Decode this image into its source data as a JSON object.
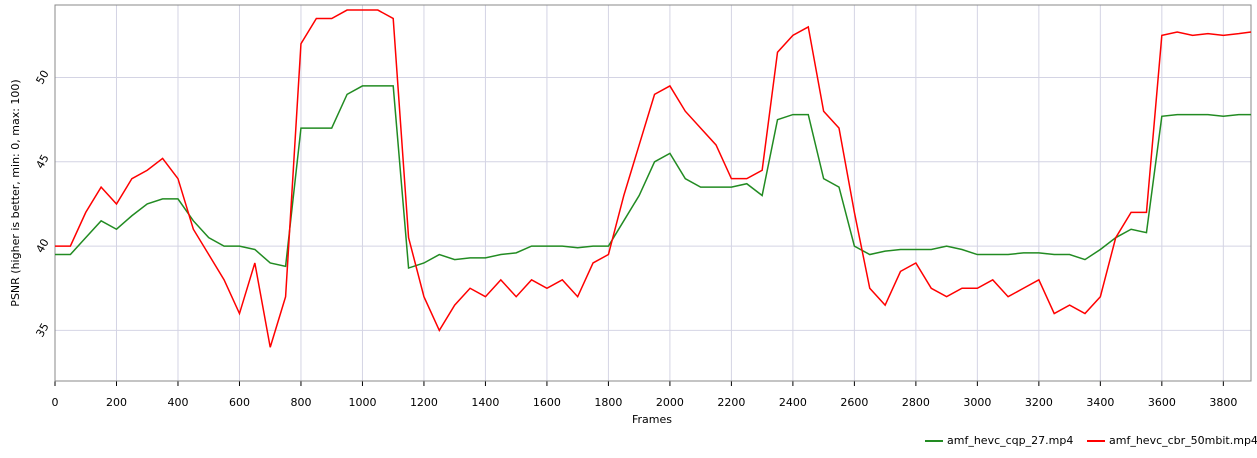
{
  "chart_data": {
    "type": "line",
    "x_label": "Frames",
    "y_label": "PSNR (higher is better, min: 0, max: 100)",
    "x": [
      0,
      50,
      100,
      150,
      200,
      250,
      300,
      350,
      400,
      450,
      500,
      550,
      600,
      650,
      700,
      750,
      800,
      850,
      900,
      950,
      1000,
      1050,
      1100,
      1150,
      1200,
      1250,
      1300,
      1350,
      1400,
      1450,
      1500,
      1550,
      1600,
      1650,
      1700,
      1750,
      1800,
      1850,
      1900,
      1950,
      2000,
      2050,
      2100,
      2150,
      2200,
      2250,
      2300,
      2350,
      2400,
      2450,
      2500,
      2550,
      2600,
      2650,
      2700,
      2750,
      2800,
      2850,
      2900,
      2950,
      3000,
      3050,
      3100,
      3150,
      3200,
      3250,
      3300,
      3350,
      3400,
      3450,
      3500,
      3550,
      3600,
      3650,
      3700,
      3750,
      3800,
      3850,
      3890
    ],
    "series": [
      {
        "name": "amf_hevc_cqp_27.mp4",
        "color": "#228b22",
        "values": [
          39.5,
          39.5,
          40.5,
          41.5,
          41,
          41.8,
          42.5,
          42.8,
          42.8,
          41.5,
          40.5,
          40,
          40,
          39.8,
          39,
          38.8,
          47,
          47,
          47,
          49,
          49.5,
          49.5,
          49.5,
          38.7,
          39,
          39.5,
          39.2,
          39.3,
          39.3,
          39.5,
          39.6,
          40,
          40,
          40,
          39.9,
          40,
          40,
          41.5,
          43,
          45,
          45.5,
          44,
          43.5,
          43.5,
          43.5,
          43.7,
          43,
          47.5,
          47.8,
          47.8,
          44,
          43.5,
          40,
          39.5,
          39.7,
          39.8,
          39.8,
          39.8,
          40,
          39.8,
          39.5,
          39.5,
          39.5,
          39.6,
          39.6,
          39.5,
          39.5,
          39.2,
          39.8,
          40.5,
          41,
          40.8,
          47.7,
          47.8,
          47.8,
          47.8,
          47.7,
          47.8,
          47.8
        ]
      },
      {
        "name": "amf_hevc_cbr_50mbit.mp4",
        "color": "#ff0000",
        "values": [
          40,
          40,
          42,
          43.5,
          42.5,
          44,
          44.5,
          45.2,
          44,
          41,
          39.5,
          38,
          36,
          39,
          34,
          37,
          52,
          53.5,
          53.5,
          54,
          54,
          54,
          53.5,
          40.5,
          37,
          35,
          36.5,
          37.5,
          37,
          38,
          37,
          38,
          37.5,
          38,
          37,
          39,
          39.5,
          43,
          46,
          49,
          49.5,
          48,
          47,
          46,
          44,
          44,
          44.5,
          51.5,
          52.5,
          53,
          48,
          47,
          42,
          37.5,
          36.5,
          38.5,
          39,
          37.5,
          37,
          37.5,
          37.5,
          38,
          37,
          37.5,
          38,
          36,
          36.5,
          36,
          37,
          40.5,
          42,
          42,
          52.5,
          52.7,
          52.5,
          52.6,
          52.5,
          52.6,
          52.7
        ]
      }
    ],
    "xlim": [
      0,
      3890
    ],
    "ylim": [
      32,
      54.3
    ],
    "xticks": [
      0,
      200,
      400,
      600,
      800,
      1000,
      1200,
      1400,
      1600,
      1800,
      2000,
      2200,
      2400,
      2600,
      2800,
      3000,
      3200,
      3400,
      3600,
      3800
    ],
    "yticks": [
      35,
      40,
      45,
      50
    ],
    "grid": true,
    "legend": "bottom-right"
  }
}
